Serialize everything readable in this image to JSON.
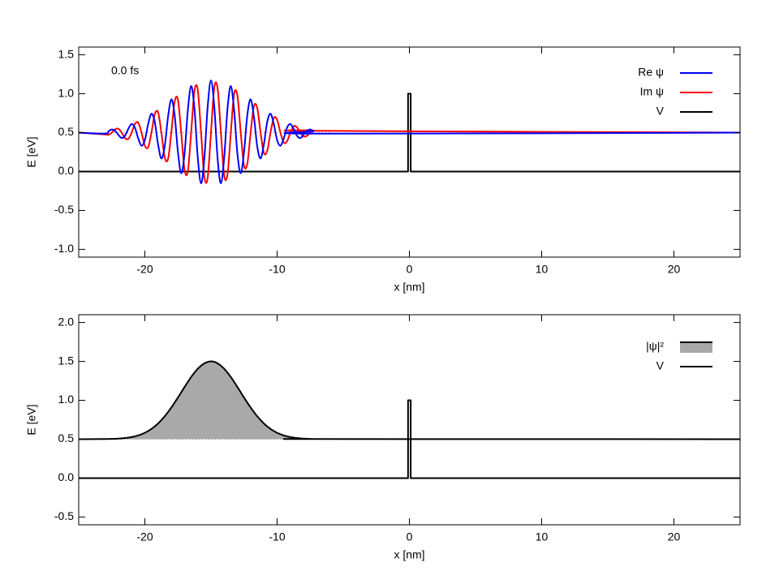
{
  "chart_data": [
    {
      "type": "line",
      "annotation": "0.0 fs",
      "xlabel": "x [nm]",
      "ylabel": "E [eV]",
      "xlim": [
        -25,
        25
      ],
      "ylim": [
        -1.1,
        1.6
      ],
      "xticks": [
        -20,
        -10,
        0,
        10,
        20
      ],
      "yticks": [
        {
          "value": -1,
          "label": "-1.0"
        },
        -0.5,
        {
          "value": 0,
          "label": "0.0"
        },
        0.5,
        {
          "value": 1,
          "label": "1.0"
        },
        1.5
      ],
      "legend": "top right",
      "reference": {
        "y": 0.5,
        "x": [
          -25,
          -6
        ]
      },
      "x": [
        -25,
        -23,
        -22.75,
        -22.5,
        -22.25,
        -22,
        -21.75,
        -21.5,
        -21.25,
        -21,
        -20.75,
        -20.5,
        -20.25,
        -20,
        -19.75,
        -19.5,
        -19.25,
        -19,
        -18.75,
        -18.5,
        -18.25,
        -18,
        -17.75,
        -17.5,
        -17.25,
        -17,
        -16.75,
        -16.5,
        -16.25,
        -16,
        -15.75,
        -15.5,
        -15.25,
        -15,
        -14.75,
        -14.5,
        -14.25,
        -14,
        -13.75,
        -13.5,
        -13.25,
        -13,
        -12.75,
        -12.5,
        -12.25,
        -12,
        -11.75,
        -11.5,
        -11.25,
        -11,
        -10.75,
        -10.5,
        -10.25,
        -10,
        -9.75,
        -9.5,
        -9.25,
        -9,
        -8.75,
        -8.5,
        -8.25,
        -8,
        -7.75,
        -7.5,
        -7.25,
        -7,
        25
      ],
      "series": [
        {
          "name": "Re ψ",
          "color": "#0000ff",
          "smooth": true,
          "values": [
            0.5,
            0.487,
            0.517,
            0.54,
            0.524,
            0.471,
            0.431,
            0.46,
            0.548,
            0.611,
            0.564,
            0.426,
            0.331,
            0.404,
            0.609,
            0.743,
            0.636,
            0.35,
            0.168,
            0.319,
            0.698,
            0.927,
            0.73,
            0.255,
            -0.021,
            0.226,
            0.788,
            1.099,
            0.81,
            0.182,
            -0.151,
            0.169,
            0.834,
            1.17,
            0.834,
            0.169,
            -0.151,
            0.182,
            0.81,
            1.099,
            0.788,
            0.226,
            -0.021,
            0.255,
            0.73,
            0.927,
            0.698,
            0.319,
            0.168,
            0.35,
            0.636,
            0.743,
            0.609,
            0.404,
            0.331,
            0.426,
            0.564,
            0.611,
            0.548,
            0.46,
            0.431,
            0.471,
            0.524,
            0.54,
            0.517,
            0.487,
            0.5
          ]
        },
        {
          "name": "Im ψ",
          "color": "#ff0000",
          "smooth": true,
          "values": [
            0.5,
            0.477,
            0.471,
            0.5,
            0.542,
            0.55,
            0.5,
            0.43,
            0.418,
            0.5,
            0.611,
            0.628,
            0.5,
            0.334,
            0.312,
            0.5,
            0.735,
            0.761,
            0.5,
            0.186,
            0.158,
            0.5,
            0.897,
            0.924,
            0.5,
            0.025,
            0.002,
            0.5,
            1.037,
            1.052,
            0.5,
            -0.073,
            -0.078,
            0.5,
            1.078,
            1.073,
            0.5,
            -0.052,
            -0.037,
            0.5,
            0.998,
            0.975,
            0.5,
            0.076,
            0.103,
            0.5,
            0.842,
            0.814,
            0.5,
            0.239,
            0.265,
            0.5,
            0.688,
            0.666,
            0.5,
            0.372,
            0.389,
            0.5,
            0.582,
            0.57,
            0.5,
            0.45,
            0.458,
            0.5,
            0.529,
            0.523,
            0.5
          ]
        },
        {
          "name": "V",
          "color": "#000000",
          "x": [
            -25,
            -0.1,
            -0.1,
            0.1,
            0.1,
            25
          ],
          "values": [
            0,
            0,
            1,
            1,
            0,
            0
          ]
        }
      ]
    },
    {
      "type": "line",
      "xlabel": "x [nm]",
      "ylabel": "E [eV]",
      "xlim": [
        -25,
        25
      ],
      "ylim": [
        -0.6,
        2.1
      ],
      "xticks": [
        -20,
        -10,
        0,
        10,
        20
      ],
      "yticks": [
        -0.5,
        {
          "value": 0,
          "label": "0.0"
        },
        0.5,
        {
          "value": 1,
          "label": "1.0"
        },
        1.5,
        {
          "value": 2,
          "label": "2.0"
        }
      ],
      "legend": "top right",
      "reference": {
        "y": 0.5,
        "x": [
          -25,
          -8
        ]
      },
      "series": [
        {
          "name": "|ψ|²",
          "color": "#000000",
          "fill": "#a9a9a9",
          "smooth": true,
          "x": [
            -25,
            -23,
            -22.5,
            -22,
            -21.5,
            -21,
            -20.5,
            -20,
            -19.5,
            -19,
            -18.5,
            -18,
            -17.5,
            -17,
            -16.5,
            -16,
            -15.5,
            -15,
            -14.5,
            -14,
            -13.5,
            -13,
            -12.5,
            -12,
            -11.5,
            -11,
            -10.5,
            -10,
            -9.5,
            -9,
            -8.5,
            -8,
            -7.5,
            -7,
            25
          ],
          "values": [
            0.5,
            0.502,
            0.504,
            0.507,
            0.515,
            0.527,
            0.549,
            0.582,
            0.632,
            0.702,
            0.794,
            0.907,
            1.035,
            1.17,
            1.299,
            1.405,
            1.475,
            1.5,
            1.475,
            1.405,
            1.299,
            1.17,
            1.035,
            0.907,
            0.794,
            0.702,
            0.632,
            0.582,
            0.549,
            0.527,
            0.515,
            0.507,
            0.504,
            0.502,
            0.5
          ]
        },
        {
          "name": "V",
          "color": "#000000",
          "x": [
            -25,
            -0.1,
            -0.1,
            0.1,
            0.1,
            25
          ],
          "values": [
            0,
            0,
            1,
            1,
            0,
            0
          ]
        }
      ]
    }
  ]
}
